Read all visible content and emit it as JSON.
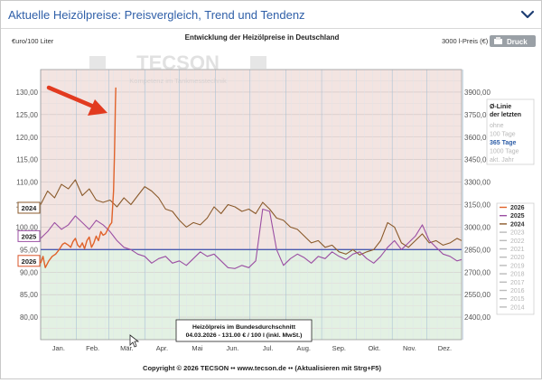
{
  "header": {
    "title": "Aktuelle Heizölpreise:  Preisvergleich, Trend und Tendenz",
    "collapse_icon": "chevron-down-icon"
  },
  "toolbar": {
    "print_label": "Druck",
    "print_icon": "printer-icon"
  },
  "watermark": {
    "brand": "TECSON",
    "tagline": "Kompetenz im Tankmesstechnik"
  },
  "chart_data": {
    "type": "line",
    "title": "Entwicklung der Heizölpreise in Deutschland",
    "ylabel_left": "€uro/100 Liter",
    "ylabel_right": "3000 l-Preis (€)",
    "ylim": [
      75,
      135
    ],
    "y_ticks_left": [
      "80,00",
      "85,00",
      "90,00",
      "95,00",
      "100,00",
      "105,00",
      "110,00",
      "115,00",
      "120,00",
      "125,00",
      "130,00"
    ],
    "y_ticks_right": [
      "2400,00",
      "2550,00",
      "2700,00",
      "2850,00",
      "3000,00",
      "3150,00",
      "3300,00",
      "3450,00",
      "3600,00",
      "3750,00",
      "3900,00"
    ],
    "months": [
      "Jan.",
      "Feb.",
      "Mär.",
      "Apr.",
      "Mai",
      "Jun.",
      "Jul.",
      "Aug.",
      "Sep.",
      "Okt.",
      "Nov.",
      "Dez."
    ],
    "reference_line": 95,
    "year_markers": [
      {
        "label": "2024",
        "value": 104.3,
        "color": "#8a5a2b"
      },
      {
        "label": "2025",
        "value": 98.0,
        "color": "#9b4fa3"
      },
      {
        "label": "2026",
        "value": 92.5,
        "color": "#d9542a"
      }
    ],
    "series": [
      {
        "name": "2026",
        "color": "#e0622a",
        "x": [
          1,
          3,
          5,
          8,
          11,
          14,
          17,
          20,
          22,
          25,
          27,
          29,
          31,
          33,
          35,
          37,
          39,
          41,
          43,
          45,
          47,
          49,
          51,
          53,
          55,
          57,
          59,
          61,
          62.5,
          63,
          64,
          64.8,
          65.3,
          65.6,
          66
        ],
        "values": [
          92.0,
          93.5,
          91.0,
          92.5,
          93.5,
          94.0,
          95.0,
          96.2,
          96.5,
          96.0,
          95.5,
          96.8,
          97.5,
          96.0,
          95.5,
          96.5,
          95.2,
          97.0,
          97.8,
          95.5,
          96.5,
          98.0,
          97.0,
          99.0,
          98.2,
          98.5,
          99.5,
          100.5,
          101.0,
          103.5,
          108.0,
          116.0,
          122.0,
          127.0,
          131.0
        ]
      },
      {
        "name": "2025",
        "color": "#9b4fa3",
        "x": [
          1,
          7,
          13,
          19,
          25,
          31,
          37,
          43,
          49,
          55,
          61,
          67,
          73,
          79,
          85,
          91,
          97,
          103,
          109,
          115,
          121,
          127,
          133,
          139,
          145,
          151,
          157,
          163,
          169,
          175,
          181,
          187,
          193,
          199,
          205,
          211,
          217,
          223,
          229,
          235,
          241,
          247,
          253,
          259,
          265,
          271,
          277,
          283,
          289,
          295,
          301,
          307,
          313,
          319,
          325,
          331,
          337,
          343,
          349,
          355,
          361,
          365
        ],
        "values": [
          97.5,
          99.0,
          101.0,
          99.5,
          100.5,
          102.5,
          101.0,
          99.5,
          101.5,
          100.5,
          99.0,
          97.0,
          95.5,
          95.0,
          94.0,
          93.5,
          92.0,
          93.0,
          93.5,
          92.0,
          92.5,
          91.5,
          93.0,
          94.5,
          93.5,
          94.0,
          92.5,
          91.0,
          90.8,
          91.5,
          91.0,
          92.5,
          104.0,
          103.5,
          95.0,
          91.5,
          93.0,
          94.0,
          93.2,
          92.0,
          93.5,
          93.0,
          94.5,
          93.5,
          92.8,
          94.0,
          94.5,
          93.0,
          92.0,
          93.5,
          95.5,
          97.0,
          95.0,
          96.5,
          98.0,
          100.5,
          97.0,
          95.5,
          94.0,
          93.5,
          92.5,
          92.8
        ]
      },
      {
        "name": "2024",
        "color": "#8a5a2b",
        "x": [
          1,
          7,
          13,
          19,
          25,
          31,
          37,
          43,
          49,
          55,
          61,
          67,
          73,
          79,
          85,
          91,
          97,
          103,
          109,
          115,
          121,
          127,
          133,
          139,
          145,
          151,
          157,
          163,
          169,
          175,
          181,
          187,
          193,
          199,
          205,
          211,
          217,
          223,
          229,
          235,
          241,
          247,
          253,
          259,
          265,
          271,
          277,
          283,
          289,
          295,
          301,
          307,
          313,
          319,
          325,
          331,
          337,
          343,
          349,
          355,
          361,
          365
        ],
        "values": [
          105.0,
          108.0,
          106.5,
          109.5,
          108.5,
          110.5,
          107.0,
          108.5,
          106.0,
          105.5,
          106.0,
          104.5,
          106.5,
          105.0,
          107.0,
          109.0,
          108.0,
          106.5,
          104.0,
          103.5,
          101.5,
          100.0,
          101.0,
          100.5,
          102.0,
          104.5,
          103.0,
          105.0,
          104.5,
          103.5,
          104.0,
          103.0,
          105.5,
          104.0,
          102.0,
          101.5,
          100.0,
          99.5,
          98.0,
          96.5,
          97.0,
          95.5,
          96.0,
          94.5,
          94.0,
          95.0,
          93.8,
          94.5,
          95.0,
          97.0,
          101.0,
          100.0,
          96.5,
          95.5,
          97.0,
          98.5,
          96.5,
          97.0,
          96.0,
          96.5,
          97.5,
          97.0
        ]
      }
    ],
    "legend": {
      "placement": "right",
      "title": "Ø-Linie der letzten",
      "options": [
        "ohne",
        "100 Tage",
        "365 Tage",
        "1000 Tage",
        "akt. Jahr"
      ],
      "selected_option": "365 Tage",
      "years": [
        {
          "label": "2026",
          "color": "#e0622a",
          "active": true
        },
        {
          "label": "2025",
          "color": "#9b4fa3",
          "active": true
        },
        {
          "label": "2024",
          "color": "#8a5a2b",
          "active": true
        },
        {
          "label": "2023",
          "color": "#bbbbbb",
          "active": false
        },
        {
          "label": "2022",
          "color": "#bbbbbb",
          "active": false
        },
        {
          "label": "2021",
          "color": "#bbbbbb",
          "active": false
        },
        {
          "label": "2020",
          "color": "#bbbbbb",
          "active": false
        },
        {
          "label": "2019",
          "color": "#bbbbbb",
          "active": false
        },
        {
          "label": "2018",
          "color": "#bbbbbb",
          "active": false
        },
        {
          "label": "2017",
          "color": "#bbbbbb",
          "active": false
        },
        {
          "label": "2016",
          "color": "#bbbbbb",
          "active": false
        },
        {
          "label": "2015",
          "color": "#bbbbbb",
          "active": false
        },
        {
          "label": "2014",
          "color": "#bbbbbb",
          "active": false
        }
      ]
    },
    "info_box": {
      "line1": "Heizölpreis im Bundesdurchschnitt",
      "line2": "04.03.2026 - 131.00 € / 100 l (inkl. MwSt.)"
    },
    "copyright": "Copyright © 2026 TECSON •• www.tecson.de •• (Aktualisieren mit Strg+F5)",
    "annotation": "red-arrow-icon",
    "colors": {
      "above_band": "#f3e4e1",
      "below_band": "#e3f1e3",
      "reference": "#4a5bb0"
    }
  }
}
